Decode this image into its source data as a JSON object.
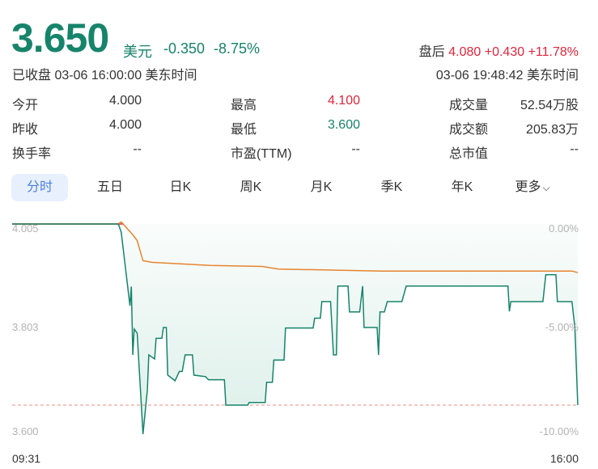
{
  "quote": {
    "price": "3.650",
    "unit": "美元",
    "change": "-0.350",
    "change_pct": "-8.75%",
    "status": "已收盘 03-06 16:00:00 美东时间",
    "after_hours": {
      "label": "盘后",
      "price": "4.080",
      "change": "+0.430",
      "change_pct": "+11.78%",
      "time": "03-06 19:48:42 美东时间"
    }
  },
  "colors": {
    "down": "#16846a",
    "up": "#e0243a",
    "avg_line": "#e8842f",
    "prev_close_line": "#e0243a",
    "fill": "#dcefe9",
    "active_tab_bg": "#e8f0fe",
    "active_tab_text": "#4b7fe0"
  },
  "stats": [
    [
      {
        "label": "今开",
        "value": "4.000"
      },
      {
        "label": "最高",
        "value": "4.100",
        "color": "up"
      },
      {
        "label": "成交量",
        "value": "52.54万股"
      }
    ],
    [
      {
        "label": "昨收",
        "value": "4.000"
      },
      {
        "label": "最低",
        "value": "3.600",
        "color": "down"
      },
      {
        "label": "成交额",
        "value": "205.83万"
      }
    ],
    [
      {
        "label": "换手率",
        "value": "--"
      },
      {
        "label": "市盈(TTM)",
        "value": "--"
      },
      {
        "label": "总市值",
        "value": "--"
      }
    ]
  ],
  "tabs": [
    {
      "label": "分时",
      "active": true
    },
    {
      "label": "五日"
    },
    {
      "label": "日K"
    },
    {
      "label": "周K"
    },
    {
      "label": "月K"
    },
    {
      "label": "季K"
    },
    {
      "label": "年K"
    },
    {
      "label": "更多",
      "icon": "chevron-down-icon"
    }
  ],
  "chart_data": {
    "type": "line",
    "x_range": [
      "09:31",
      "16:00"
    ],
    "x_tick_labels": [
      "09:31",
      "16:00"
    ],
    "y_tick_labels_left": [
      "4.005",
      "3.803",
      "3.600"
    ],
    "y_tick_labels_right": [
      "0.00%",
      "-5.00%",
      "-10.00%"
    ],
    "ylim": [
      3.6,
      4.0
    ],
    "prev_close": 4.0,
    "reference_line": 3.65,
    "grid": false,
    "series": [
      {
        "role": "price",
        "points": [
          [
            "09:31",
            4.0
          ],
          [
            "10:44",
            4.0
          ],
          [
            "10:46",
            3.984
          ],
          [
            "10:52",
            3.842
          ],
          [
            "10:53",
            3.879
          ],
          [
            "10:54",
            3.747
          ],
          [
            "10:55",
            3.797
          ],
          [
            "10:57",
            3.789
          ],
          [
            "11:01",
            3.594
          ],
          [
            "11:04",
            3.679
          ],
          [
            "11:05",
            3.747
          ],
          [
            "11:09",
            3.739
          ],
          [
            "11:10",
            3.779
          ],
          [
            "11:14",
            3.779
          ],
          [
            "11:15",
            3.8
          ],
          [
            "11:17",
            3.8
          ],
          [
            "11:18",
            3.708
          ],
          [
            "11:23",
            3.697
          ],
          [
            "11:26",
            3.715
          ],
          [
            "11:28",
            3.715
          ],
          [
            "11:30",
            3.747
          ],
          [
            "11:35",
            3.747
          ],
          [
            "11:36",
            3.708
          ],
          [
            "11:44",
            3.705
          ],
          [
            "11:46",
            3.699
          ],
          [
            "11:57",
            3.699
          ],
          [
            "11:58",
            3.65
          ],
          [
            "12:13",
            3.65
          ],
          [
            "12:14",
            3.655
          ],
          [
            "12:25",
            3.655
          ],
          [
            "12:26",
            3.694
          ],
          [
            "12:30",
            3.694
          ],
          [
            "12:31",
            3.737
          ],
          [
            "12:38",
            3.737
          ],
          [
            "12:39",
            3.799
          ],
          [
            "12:58",
            3.799
          ],
          [
            "12:59",
            3.818
          ],
          [
            "13:03",
            3.818
          ],
          [
            "13:04",
            3.85
          ],
          [
            "13:10",
            3.85
          ],
          [
            "13:12",
            3.747
          ],
          [
            "13:14",
            3.747
          ],
          [
            "13:15",
            3.88
          ],
          [
            "13:22",
            3.88
          ],
          [
            "13:23",
            3.83
          ],
          [
            "13:30",
            3.83
          ],
          [
            "13:32",
            3.88
          ],
          [
            "13:33",
            3.8
          ],
          [
            "13:42",
            3.8
          ],
          [
            "13:43",
            3.747
          ],
          [
            "13:44",
            3.83
          ],
          [
            "13:47",
            3.83
          ],
          [
            "13:49",
            3.85
          ],
          [
            "13:59",
            3.85
          ],
          [
            "14:02",
            3.88
          ],
          [
            "15:12",
            3.88
          ],
          [
            "15:13",
            3.831
          ],
          [
            "15:14",
            3.85
          ],
          [
            "15:36",
            3.85
          ],
          [
            "15:38",
            3.902
          ],
          [
            "15:45",
            3.902
          ],
          [
            "15:46",
            3.85
          ],
          [
            "15:56",
            3.85
          ],
          [
            "15:58",
            3.8
          ],
          [
            "16:00",
            3.65
          ]
        ]
      },
      {
        "role": "average",
        "points": [
          [
            "09:31",
            4.0
          ],
          [
            "10:44",
            4.0
          ],
          [
            "10:46",
            4.004
          ],
          [
            "10:54",
            3.979
          ],
          [
            "10:57",
            3.968
          ],
          [
            "11:01",
            3.929
          ],
          [
            "11:07",
            3.926
          ],
          [
            "11:47",
            3.92
          ],
          [
            "12:23",
            3.918
          ],
          [
            "12:34",
            3.913
          ],
          [
            "13:11",
            3.911
          ],
          [
            "13:45",
            3.909
          ],
          [
            "15:56",
            3.909
          ],
          [
            "16:00",
            3.906
          ]
        ]
      }
    ]
  }
}
